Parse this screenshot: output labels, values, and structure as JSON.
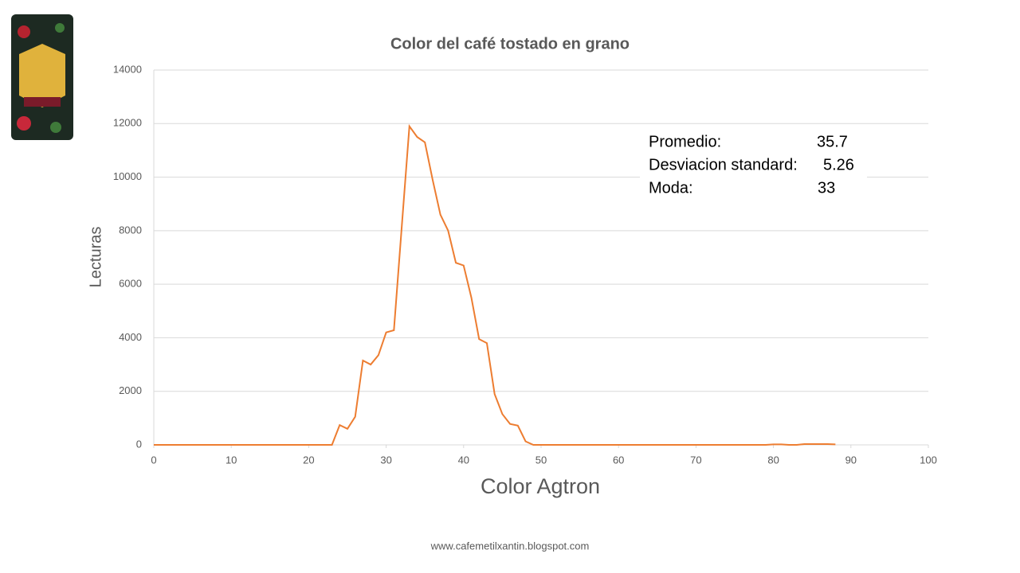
{
  "chart_data": {
    "type": "line",
    "title": "Color del café tostado en grano",
    "x_label": "Color Agtron",
    "y_label": "Lecturas",
    "x": [
      0,
      1,
      2,
      3,
      4,
      5,
      6,
      7,
      8,
      9,
      10,
      11,
      12,
      13,
      14,
      15,
      16,
      17,
      18,
      19,
      20,
      21,
      22,
      23,
      24,
      25,
      26,
      27,
      28,
      29,
      30,
      31,
      32,
      33,
      34,
      35,
      36,
      37,
      38,
      39,
      40,
      41,
      42,
      43,
      44,
      45,
      46,
      47,
      48,
      49,
      50,
      51,
      52,
      53,
      54,
      55,
      56,
      57,
      58,
      59,
      60,
      61,
      62,
      63,
      64,
      65,
      66,
      67,
      68,
      69,
      70,
      71,
      72,
      73,
      74,
      75,
      76,
      77,
      78,
      79,
      80,
      81,
      82,
      83,
      84,
      85,
      86,
      87,
      88
    ],
    "values": [
      0,
      0,
      0,
      0,
      0,
      0,
      0,
      0,
      0,
      0,
      0,
      0,
      0,
      0,
      0,
      0,
      0,
      0,
      0,
      0,
      0,
      0,
      0,
      0,
      740,
      600,
      1050,
      3150,
      3000,
      3350,
      4200,
      4280,
      8100,
      11900,
      11500,
      11300,
      9900,
      8600,
      8000,
      6800,
      6700,
      5500,
      3950,
      3800,
      1900,
      1150,
      780,
      720,
      130,
      0,
      0,
      0,
      0,
      0,
      0,
      0,
      0,
      0,
      0,
      0,
      0,
      0,
      0,
      0,
      0,
      0,
      0,
      0,
      0,
      0,
      0,
      0,
      0,
      0,
      0,
      0,
      0,
      0,
      0,
      0,
      20,
      20,
      0,
      0,
      30,
      30,
      30,
      30,
      20
    ],
    "color": "#ed7d31",
    "xlim": [
      0,
      100
    ],
    "xticks": [
      0,
      10,
      20,
      30,
      40,
      50,
      60,
      70,
      80,
      90,
      100
    ],
    "ylim": [
      0,
      14000
    ],
    "yticks": [
      0,
      2000,
      4000,
      6000,
      8000,
      10000,
      12000,
      14000
    ],
    "grid": true,
    "stats": [
      {
        "label": "Promedio:",
        "value": 35.7
      },
      {
        "label": "Desviacion standard:",
        "value": 5.26
      },
      {
        "label": "Moda:",
        "value": 33
      }
    ]
  },
  "footer": "www.cafemetilxantin.blogspot.com"
}
